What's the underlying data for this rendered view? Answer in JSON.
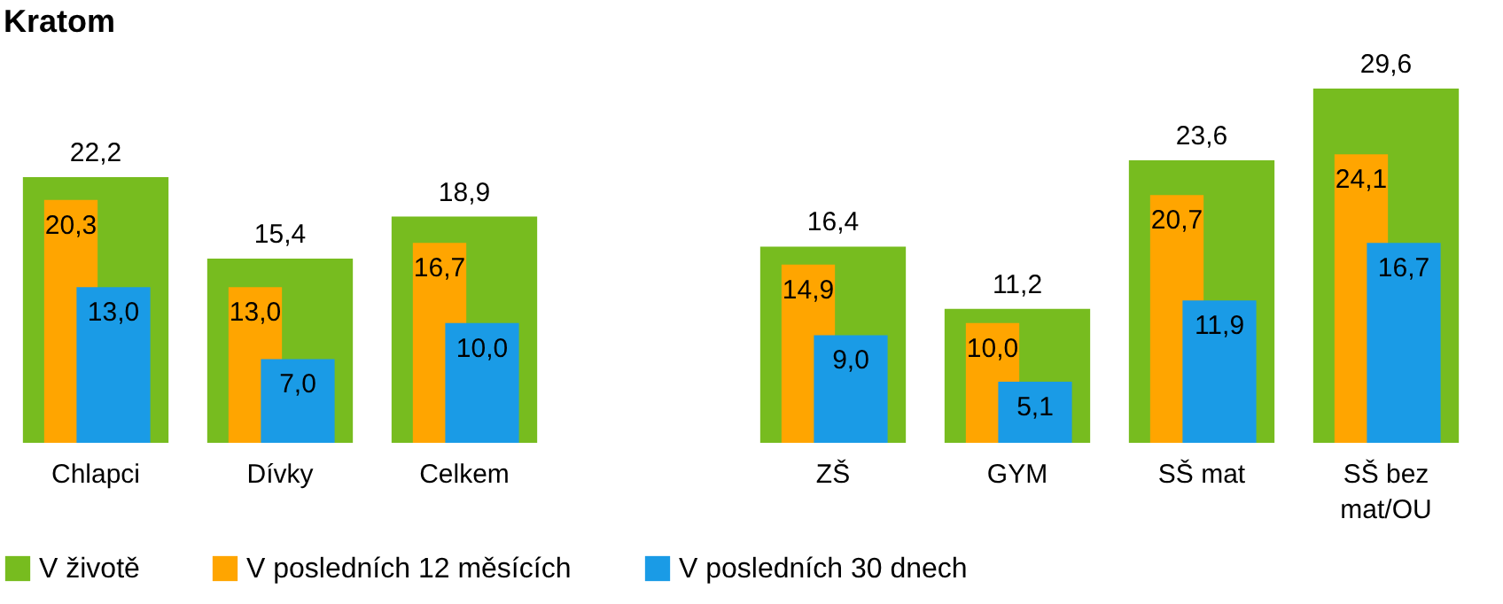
{
  "chart_data": {
    "type": "bar",
    "title": "Kratom",
    "categories": [
      "Chlapci",
      "Dívky",
      "Celkem",
      null,
      "ZŠ",
      "GYM",
      "SŠ mat",
      "SŠ bez mat/OU"
    ],
    "series": [
      {
        "name": "V životě",
        "color": "#77bc1f",
        "values": [
          22.2,
          15.4,
          18.9,
          null,
          16.4,
          11.2,
          23.6,
          29.6
        ],
        "value_labels": [
          "22,2",
          "15,4",
          "18,9",
          null,
          "16,4",
          "11,2",
          "23,6",
          "29,6"
        ]
      },
      {
        "name": "V posledních 12 měsících",
        "color": "#ffa500",
        "values": [
          20.3,
          13.0,
          16.7,
          null,
          14.9,
          10.0,
          20.7,
          24.1
        ],
        "value_labels": [
          "20,3",
          "13,0",
          "16,7",
          null,
          "14,9",
          "10,0",
          "20,7",
          "24,1"
        ]
      },
      {
        "name": "V posledních 30 dnech",
        "color": "#1a9be6",
        "values": [
          13.0,
          7.0,
          10.0,
          null,
          9.0,
          5.1,
          11.9,
          16.7
        ],
        "value_labels": [
          "13,0",
          "7,0",
          "10,0",
          null,
          "9,0",
          "5,1",
          "11,9",
          "16,7"
        ]
      }
    ],
    "legend": "bottom"
  }
}
